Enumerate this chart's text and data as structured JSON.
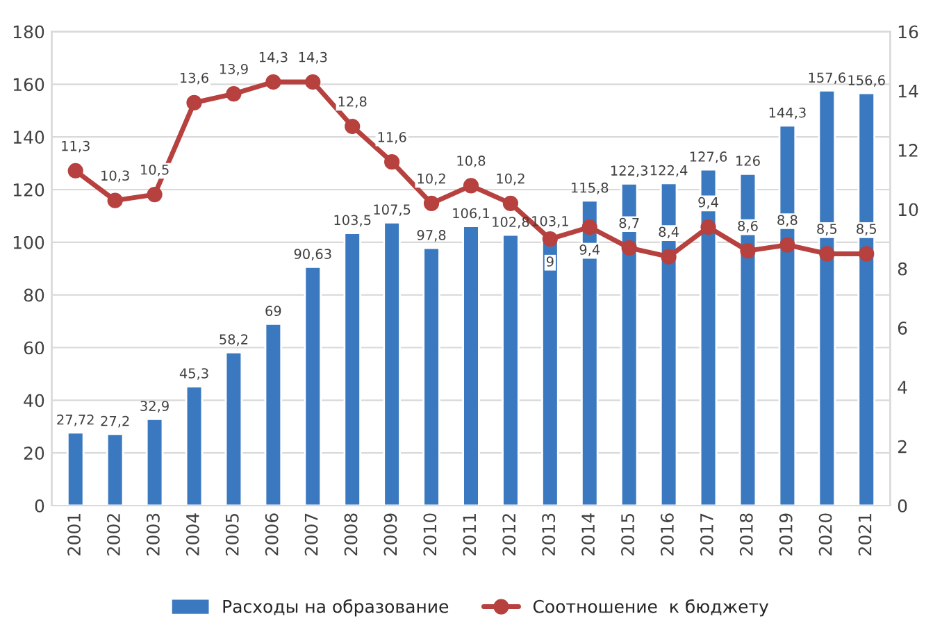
{
  "chart_data": {
    "type": "bar",
    "categories": [
      "2001",
      "2002",
      "2003",
      "2004",
      "2005",
      "2006",
      "2007",
      "2008",
      "2009",
      "2010",
      "2011",
      "2012",
      "2013",
      "2014",
      "2015",
      "2016",
      "2017",
      "2018",
      "2019",
      "2020",
      "2021"
    ],
    "series": [
      {
        "name": "Расходы на образование",
        "color": "#3a78c0",
        "values": [
          27.72,
          27.2,
          32.9,
          45.3,
          58.2,
          69,
          90.63,
          103.5,
          107.5,
          97.8,
          106.1,
          102.8,
          103.1,
          115.8,
          122.3,
          122.4,
          127.6,
          126,
          144.3,
          157.6,
          156.6
        ],
        "value_labels": [
          "27,72",
          "27,2",
          "32,9",
          "45,3",
          "58,2",
          "69",
          "90,63",
          "103,5",
          "107,5",
          "97,8",
          "106,1",
          "102,8",
          "103,1",
          "115,8",
          "122,3",
          "122,4",
          "127,6",
          "126",
          "144,3",
          "157,6",
          "156,6"
        ]
      },
      {
        "name": "Соотношение  к бюджету",
        "type": "line",
        "axis": "y2",
        "color": "#b7413e",
        "marker": "circle",
        "values": [
          11.3,
          10.3,
          10.5,
          13.6,
          13.9,
          14.3,
          14.3,
          12.8,
          11.6,
          10.2,
          10.8,
          10.2,
          9,
          9.4,
          8.7,
          8.4,
          9.4,
          8.6,
          8.8,
          8.5,
          8.5
        ],
        "value_labels": [
          "11,3",
          "10,3",
          "10,5",
          "13,6",
          "13,9",
          "14,3",
          "14,3",
          "12,8",
          "11,6",
          "10,2",
          "10,8",
          "10,2",
          "9",
          "9,4",
          "8,7",
          "8,4",
          "9,4",
          "8,6",
          "8,8",
          "8,5",
          "8,5"
        ]
      }
    ],
    "ylim": [
      0,
      180
    ],
    "yticks": [
      0,
      20,
      40,
      60,
      80,
      100,
      120,
      140,
      160,
      180
    ],
    "y2lim": [
      0,
      16
    ],
    "y2ticks": [
      0,
      2,
      4,
      6,
      8,
      10,
      12,
      14,
      16
    ],
    "grid": "y",
    "legend": "bottom"
  }
}
